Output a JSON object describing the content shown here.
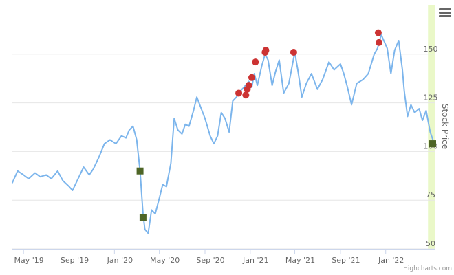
{
  "chart_data": {
    "type": "line",
    "title": "",
    "ylabel": "Stock Price",
    "ylim": [
      50,
      175
    ],
    "yticks": [
      50,
      75,
      100,
      125,
      150
    ],
    "xlim": [
      "2019-04-01",
      "2022-05-15"
    ],
    "xticks": [
      {
        "date": "2019-05-01",
        "label": "May '19"
      },
      {
        "date": "2019-09-01",
        "label": "Sep '19"
      },
      {
        "date": "2020-01-01",
        "label": "Jan '20"
      },
      {
        "date": "2020-05-01",
        "label": "May '20"
      },
      {
        "date": "2020-09-01",
        "label": "Sep '20"
      },
      {
        "date": "2021-01-01",
        "label": "Jan '21"
      },
      {
        "date": "2021-05-01",
        "label": "May '21"
      },
      {
        "date": "2021-09-01",
        "label": "Sep '21"
      },
      {
        "date": "2022-01-01",
        "label": "Jan '22"
      }
    ],
    "grid": true,
    "legend": "none",
    "credits": "Highcharts.com",
    "series": [
      {
        "kind": "price",
        "color": "#7cb5ec",
        "points": [
          [
            "2019-04-01",
            84
          ],
          [
            "2019-04-15",
            90
          ],
          [
            "2019-05-01",
            88
          ],
          [
            "2019-05-15",
            86
          ],
          [
            "2019-06-01",
            89
          ],
          [
            "2019-06-15",
            87
          ],
          [
            "2019-07-01",
            88
          ],
          [
            "2019-07-15",
            86
          ],
          [
            "2019-08-01",
            90
          ],
          [
            "2019-08-15",
            85
          ],
          [
            "2019-09-01",
            82
          ],
          [
            "2019-09-10",
            80
          ],
          [
            "2019-09-25",
            86
          ],
          [
            "2019-10-10",
            92
          ],
          [
            "2019-10-25",
            88
          ],
          [
            "2019-11-05",
            91
          ],
          [
            "2019-11-20",
            97
          ],
          [
            "2019-12-05",
            104
          ],
          [
            "2019-12-20",
            106
          ],
          [
            "2020-01-05",
            104
          ],
          [
            "2020-01-20",
            108
          ],
          [
            "2020-02-01",
            107
          ],
          [
            "2020-02-10",
            111
          ],
          [
            "2020-02-20",
            113
          ],
          [
            "2020-03-01",
            106
          ],
          [
            "2020-03-10",
            90
          ],
          [
            "2020-03-18",
            68
          ],
          [
            "2020-03-23",
            60
          ],
          [
            "2020-04-01",
            58
          ],
          [
            "2020-04-10",
            70
          ],
          [
            "2020-04-20",
            68
          ],
          [
            "2020-05-01",
            76
          ],
          [
            "2020-05-10",
            83
          ],
          [
            "2020-05-20",
            82
          ],
          [
            "2020-06-01",
            94
          ],
          [
            "2020-06-10",
            117
          ],
          [
            "2020-06-20",
            111
          ],
          [
            "2020-07-01",
            109
          ],
          [
            "2020-07-10",
            114
          ],
          [
            "2020-07-20",
            113
          ],
          [
            "2020-08-01",
            121
          ],
          [
            "2020-08-10",
            128
          ],
          [
            "2020-08-20",
            123
          ],
          [
            "2020-09-01",
            117
          ],
          [
            "2020-09-15",
            108
          ],
          [
            "2020-09-25",
            104
          ],
          [
            "2020-10-05",
            108
          ],
          [
            "2020-10-15",
            120
          ],
          [
            "2020-10-25",
            117
          ],
          [
            "2020-11-05",
            110
          ],
          [
            "2020-11-15",
            126
          ],
          [
            "2020-11-25",
            128
          ],
          [
            "2020-12-05",
            131
          ],
          [
            "2020-12-15",
            133
          ],
          [
            "2020-12-28",
            136
          ],
          [
            "2021-01-05",
            133
          ],
          [
            "2021-01-12",
            140
          ],
          [
            "2021-01-20",
            134
          ],
          [
            "2021-02-01",
            144
          ],
          [
            "2021-02-10",
            150
          ],
          [
            "2021-02-18",
            147
          ],
          [
            "2021-03-01",
            134
          ],
          [
            "2021-03-10",
            141
          ],
          [
            "2021-03-20",
            147
          ],
          [
            "2021-04-01",
            130
          ],
          [
            "2021-04-15",
            135
          ],
          [
            "2021-05-01",
            151
          ],
          [
            "2021-05-10",
            141
          ],
          [
            "2021-05-20",
            128
          ],
          [
            "2021-06-01",
            135
          ],
          [
            "2021-06-15",
            140
          ],
          [
            "2021-07-01",
            132
          ],
          [
            "2021-07-15",
            137
          ],
          [
            "2021-08-01",
            146
          ],
          [
            "2021-08-15",
            142
          ],
          [
            "2021-09-01",
            145
          ],
          [
            "2021-09-10",
            140
          ],
          [
            "2021-09-20",
            133
          ],
          [
            "2021-10-01",
            124
          ],
          [
            "2021-10-15",
            135
          ],
          [
            "2021-11-01",
            137
          ],
          [
            "2021-11-15",
            140
          ],
          [
            "2021-12-01",
            150
          ],
          [
            "2021-12-10",
            153
          ],
          [
            "2021-12-20",
            160
          ],
          [
            "2022-01-05",
            153
          ],
          [
            "2022-01-15",
            140
          ],
          [
            "2022-01-25",
            152
          ],
          [
            "2022-02-05",
            157
          ],
          [
            "2022-02-15",
            142
          ],
          [
            "2022-02-20",
            131
          ],
          [
            "2022-03-01",
            118
          ],
          [
            "2022-03-10",
            124
          ],
          [
            "2022-03-20",
            120
          ],
          [
            "2022-04-01",
            122
          ],
          [
            "2022-04-10",
            116
          ],
          [
            "2022-04-20",
            121
          ],
          [
            "2022-05-01",
            110
          ],
          [
            "2022-05-10",
            105
          ]
        ]
      },
      {
        "kind": "buy_markers",
        "color": "#4e6526",
        "shape": "square",
        "points": [
          [
            "2020-03-10",
            90
          ],
          [
            "2020-03-18",
            66
          ],
          [
            "2022-05-12",
            104
          ]
        ]
      },
      {
        "kind": "sell_markers",
        "color": "#cc3333",
        "shape": "circle",
        "points": [
          [
            "2020-12-01",
            130
          ],
          [
            "2020-12-20",
            129
          ],
          [
            "2020-12-24",
            132
          ],
          [
            "2020-12-28",
            134
          ],
          [
            "2021-01-05",
            138
          ],
          [
            "2021-01-15",
            146
          ],
          [
            "2021-02-10",
            151
          ],
          [
            "2021-02-12",
            152
          ],
          [
            "2021-04-28",
            151
          ],
          [
            "2021-12-12",
            161
          ],
          [
            "2021-12-14",
            156
          ]
        ]
      }
    ],
    "highlight_band": {
      "from": "2022-04-25",
      "to": "2022-05-15",
      "color": "#eaf8c8"
    }
  },
  "ui": {
    "menu_icon": "hamburger-menu-icon",
    "menu_color": "#666666"
  }
}
